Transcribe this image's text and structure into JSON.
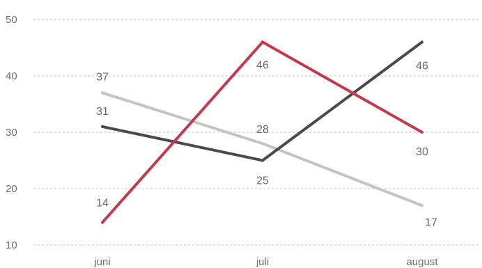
{
  "chart_data": {
    "type": "line",
    "categories": [
      "juni",
      "juli",
      "august"
    ],
    "ylim": [
      10,
      50
    ],
    "yticks": [
      10,
      20,
      30,
      40,
      50
    ],
    "grid": true,
    "series": [
      {
        "color": "#c4c4c4",
        "values": [
          37,
          28,
          17
        ]
      },
      {
        "color": "#4a4a4a",
        "values": [
          31,
          25,
          46
        ]
      },
      {
        "color": "#c23a4b",
        "values": [
          14,
          46,
          30
        ]
      }
    ]
  }
}
